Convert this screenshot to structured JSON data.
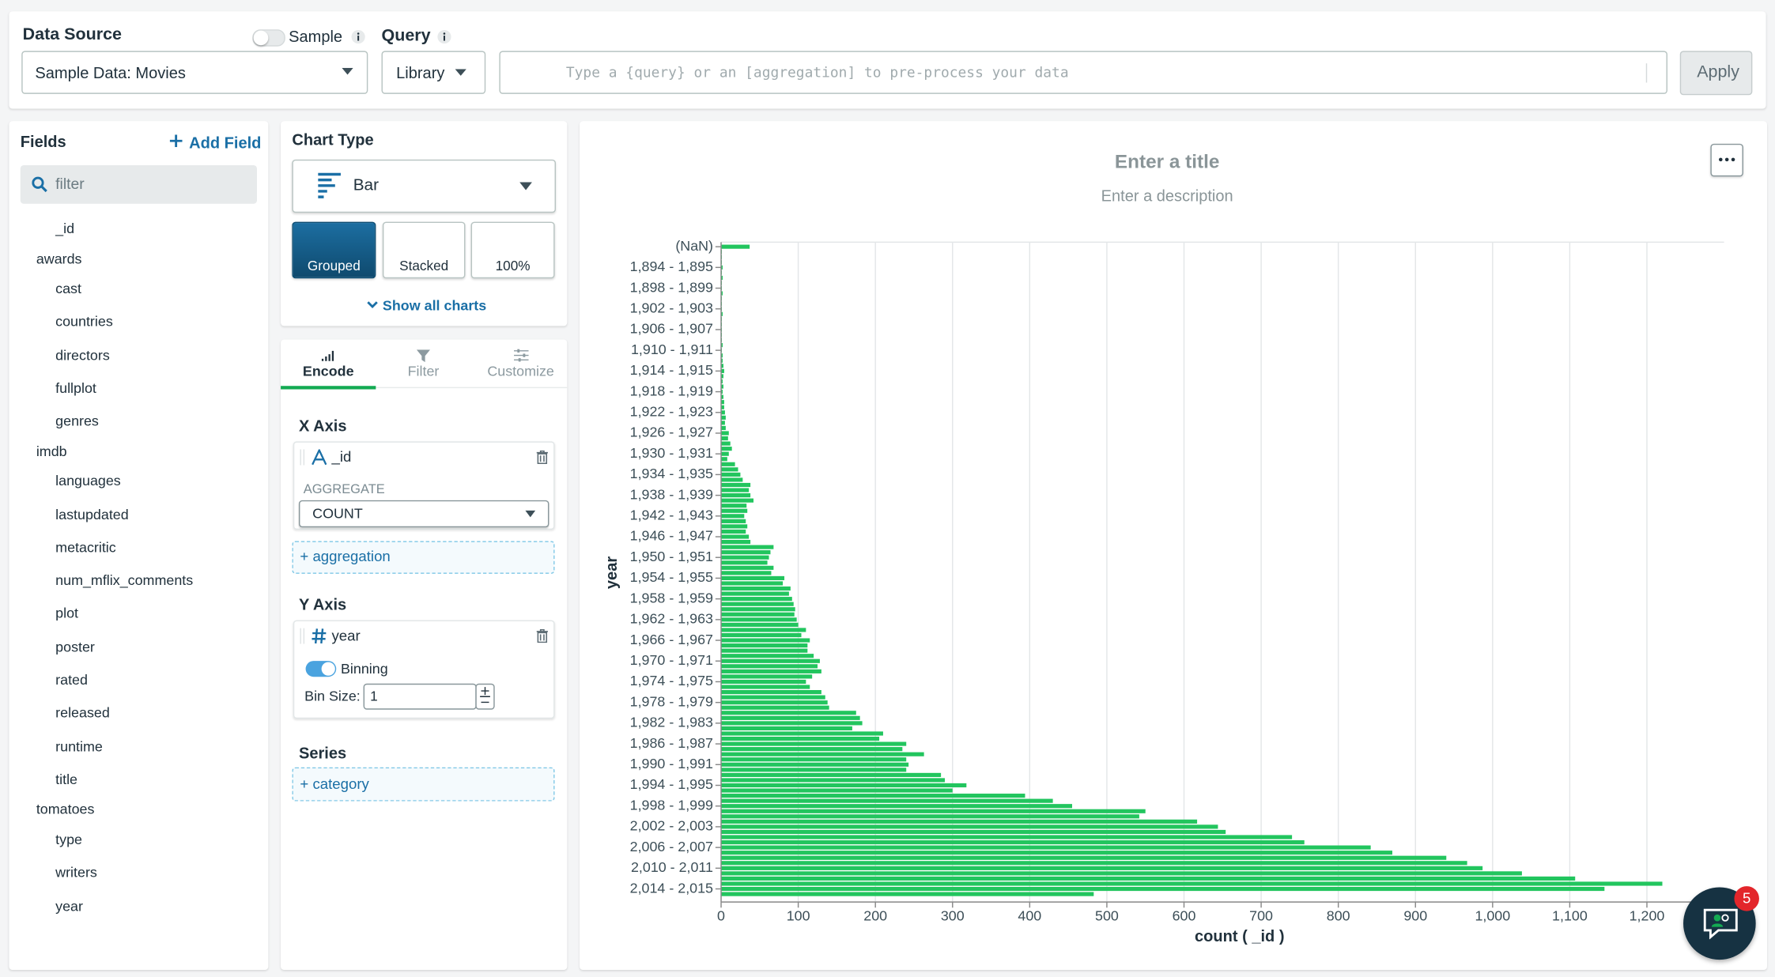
{
  "header": {
    "data_source_label": "Data Source",
    "sample_label": "Sample",
    "query_label": "Query",
    "data_source_value": "Sample Data: Movies",
    "library": "Library",
    "query_placeholder": "Type a {query} or an [aggregation] to pre-process your data",
    "apply": "Apply"
  },
  "fields": {
    "title": "Fields",
    "add_field": "Add Field",
    "filter_placeholder": "filter",
    "items": [
      {
        "name": "_id",
        "icon": "string"
      },
      {
        "name": "awards",
        "icon": "object"
      },
      {
        "name": "cast",
        "icon": "string",
        "array": true
      },
      {
        "name": "countries",
        "icon": "string",
        "array": true
      },
      {
        "name": "directors",
        "icon": "string",
        "array": true
      },
      {
        "name": "fullplot",
        "icon": "string"
      },
      {
        "name": "genres",
        "icon": "string",
        "array": true
      },
      {
        "name": "imdb",
        "icon": "object"
      },
      {
        "name": "languages",
        "icon": "string",
        "array": true
      },
      {
        "name": "lastupdated",
        "icon": "string"
      },
      {
        "name": "metacritic",
        "icon": "number"
      },
      {
        "name": "num_mflix_comments",
        "icon": "number"
      },
      {
        "name": "plot",
        "icon": "string"
      },
      {
        "name": "poster",
        "icon": "string"
      },
      {
        "name": "rated",
        "icon": "string"
      },
      {
        "name": "released",
        "icon": "date"
      },
      {
        "name": "runtime",
        "icon": "number"
      },
      {
        "name": "title",
        "icon": "string"
      },
      {
        "name": "tomatoes",
        "icon": "object"
      },
      {
        "name": "type",
        "icon": "string"
      },
      {
        "name": "writers",
        "icon": "string",
        "array": true
      },
      {
        "name": "year",
        "icon": "number"
      }
    ]
  },
  "chart_type": {
    "title": "Chart Type",
    "selected": "Bar",
    "variants": [
      "Grouped",
      "Stacked",
      "100%"
    ],
    "show_all": "Show all charts"
  },
  "encode": {
    "tabs": [
      "Encode",
      "Filter",
      "Customize"
    ],
    "x_axis": "X Axis",
    "x_field": "_id",
    "aggregate_label": "AGGREGATE",
    "aggregate": "COUNT",
    "add_aggregation": "+ aggregation",
    "y_axis": "Y Axis",
    "y_field": "year",
    "binning": "Binning",
    "bin_size_label": "Bin Size:",
    "bin_size": 1,
    "series": "Series",
    "add_category": "+ category"
  },
  "chat_badge": 5,
  "chart_data": {
    "type": "bar",
    "orientation": "horizontal",
    "title": "Enter a title",
    "subtitle": "Enter a description",
    "xlabel": "count ( _id )",
    "ylabel": "year",
    "color": "#22c55e",
    "grid": true,
    "categories": [
      "(NaN)",
      null,
      null,
      null,
      "1,894 - 1,895",
      null,
      null,
      null,
      "1,898 - 1,899",
      null,
      null,
      null,
      "1,902 - 1,903",
      null,
      null,
      null,
      "1,906 - 1,907",
      null,
      null,
      null,
      "1,910 - 1,911",
      null,
      null,
      null,
      "1,914 - 1,915",
      null,
      null,
      null,
      "1,918 - 1,919",
      null,
      null,
      null,
      "1,922 - 1,923",
      null,
      null,
      null,
      "1,926 - 1,927",
      null,
      null,
      null,
      "1,930 - 1,931",
      null,
      null,
      null,
      "1,934 - 1,935",
      null,
      null,
      null,
      "1,938 - 1,939",
      null,
      null,
      null,
      "1,942 - 1,943",
      null,
      null,
      null,
      "1,946 - 1,947",
      null,
      null,
      null,
      "1,950 - 1,951",
      null,
      null,
      null,
      "1,954 - 1,955",
      null,
      null,
      null,
      "1,958 - 1,959",
      null,
      null,
      null,
      "1,962 - 1,963",
      null,
      null,
      null,
      "1,966 - 1,967",
      null,
      null,
      null,
      "1,970 - 1,971",
      null,
      null,
      null,
      "1,974 - 1,975",
      null,
      null,
      null,
      "1,978 - 1,979",
      null,
      null,
      null,
      "1,982 - 1,983",
      null,
      null,
      null,
      "1,986 - 1,987",
      null,
      null,
      null,
      "1,990 - 1,991",
      null,
      null,
      null,
      "1,994 - 1,995",
      null,
      null,
      null,
      "1,998 - 1,999",
      null,
      null,
      null,
      "2,002 - 2,003",
      null,
      null,
      null,
      "2,006 - 2,007",
      null,
      null,
      null,
      "2,010 - 2,011",
      null,
      null,
      null,
      "2,014 - 2,015",
      null
    ],
    "values": [
      37,
      1,
      1,
      1,
      2,
      1,
      2,
      1,
      1,
      2,
      1,
      1,
      1,
      2,
      1,
      1,
      1,
      1,
      1,
      2,
      1,
      2,
      2,
      3,
      4,
      3,
      2,
      3,
      2,
      3,
      4,
      4,
      5,
      6,
      5,
      6,
      10,
      9,
      12,
      14,
      10,
      8,
      18,
      22,
      25,
      28,
      38,
      36,
      38,
      42,
      33,
      34,
      30,
      32,
      34,
      32,
      36,
      38,
      68,
      64,
      62,
      60,
      68,
      65,
      82,
      80,
      90,
      88,
      92,
      94,
      96,
      95,
      98,
      100,
      110,
      104,
      115,
      112,
      112,
      120,
      128,
      125,
      130,
      118,
      110,
      115,
      130,
      135,
      138,
      140,
      175,
      180,
      183,
      170,
      210,
      205,
      240,
      235,
      263,
      240,
      243,
      240,
      285,
      290,
      318,
      300,
      394,
      430,
      455,
      550,
      542,
      617,
      644,
      654,
      740,
      756,
      842,
      870,
      940,
      967,
      987,
      1038,
      1107,
      1220,
      1145,
      483
    ],
    "xlim": [
      0,
      1300
    ],
    "xticks": [
      0,
      100,
      200,
      300,
      400,
      500,
      600,
      700,
      800,
      900,
      {
        "value": 1000,
        "label": "1,000"
      },
      {
        "value": 1100,
        "label": "1,100"
      },
      {
        "value": 1200,
        "label": "1,200"
      }
    ]
  }
}
